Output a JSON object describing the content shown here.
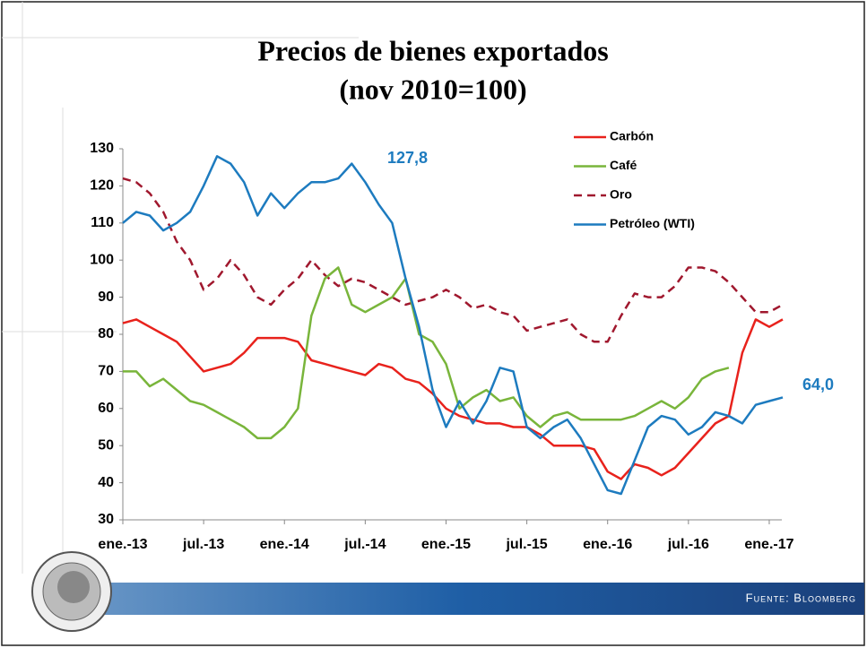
{
  "chart_data": {
    "type": "line",
    "title": "Precios de bienes exportados",
    "subtitle": "(nov 2010=100)",
    "source": "Fuente: Bloomberg",
    "categories": [
      "ene.-13",
      null,
      null,
      null,
      null,
      null,
      "jul.-13",
      null,
      null,
      null,
      null,
      null,
      "ene.-14",
      null,
      null,
      null,
      null,
      null,
      "jul.-14",
      null,
      null,
      null,
      null,
      null,
      "ene.-15",
      null,
      null,
      null,
      null,
      null,
      "jul.-15",
      null,
      null,
      null,
      null,
      null,
      "ene.-16",
      null,
      null,
      null,
      null,
      null,
      "jul.-16",
      null,
      null,
      null,
      null,
      null,
      "ene.-17",
      null
    ],
    "ylim": [
      30,
      130
    ],
    "yticks": [
      30,
      40,
      50,
      60,
      70,
      80,
      90,
      100,
      110,
      120,
      130
    ],
    "series": [
      {
        "name": "Carbón",
        "color": "#e8221c",
        "style": "solid",
        "values": [
          83,
          84,
          82,
          80,
          78,
          74,
          70,
          71,
          72,
          75,
          79,
          79,
          79,
          78,
          73,
          72,
          71,
          70,
          69,
          72,
          71,
          68,
          67,
          64,
          60,
          58,
          57,
          56,
          56,
          55,
          55,
          53,
          50,
          50,
          50,
          49,
          43,
          41,
          45,
          44,
          42,
          44,
          48,
          52,
          56,
          58,
          75,
          84,
          82,
          84
        ]
      },
      {
        "name": "Café",
        "color": "#79b53b",
        "style": "solid",
        "values": [
          70,
          70,
          66,
          68,
          65,
          62,
          61,
          59,
          57,
          55,
          52,
          52,
          55,
          60,
          85,
          95,
          98,
          88,
          86,
          88,
          90,
          95,
          80,
          78,
          72,
          60,
          63,
          65,
          62,
          63,
          58,
          55,
          58,
          59,
          57,
          57,
          57,
          57,
          58,
          60,
          62,
          60,
          63,
          68,
          70,
          71,
          null,
          null,
          null,
          null
        ]
      },
      {
        "name": "Oro",
        "color": "#a0182e",
        "style": "dashed",
        "values": [
          122,
          121,
          118,
          113,
          105,
          100,
          92,
          95,
          100,
          96,
          90,
          88,
          92,
          95,
          100,
          96,
          93,
          95,
          94,
          92,
          90,
          88,
          89,
          90,
          92,
          90,
          87,
          88,
          86,
          85,
          81,
          82,
          83,
          84,
          80,
          78,
          78,
          85,
          91,
          90,
          90,
          93,
          98,
          98,
          97,
          94,
          90,
          86,
          86,
          88
        ]
      },
      {
        "name": "Petróleo (WTI)",
        "color": "#1d7bbf",
        "style": "solid",
        "values": [
          110,
          113,
          112,
          108,
          110,
          113,
          120,
          128,
          126,
          121,
          112,
          118,
          114,
          118,
          121,
          121,
          122,
          126,
          121,
          115,
          110,
          95,
          82,
          65,
          55,
          62,
          56,
          62,
          71,
          70,
          55,
          52,
          55,
          57,
          52,
          45,
          38,
          37,
          46,
          55,
          58,
          57,
          53,
          55,
          59,
          58,
          56,
          61,
          62,
          63
        ]
      }
    ],
    "annotations": [
      {
        "text": "127,8",
        "color": "#1d7bbf"
      },
      {
        "text": "64,0",
        "color": "#1d7bbf"
      }
    ]
  }
}
